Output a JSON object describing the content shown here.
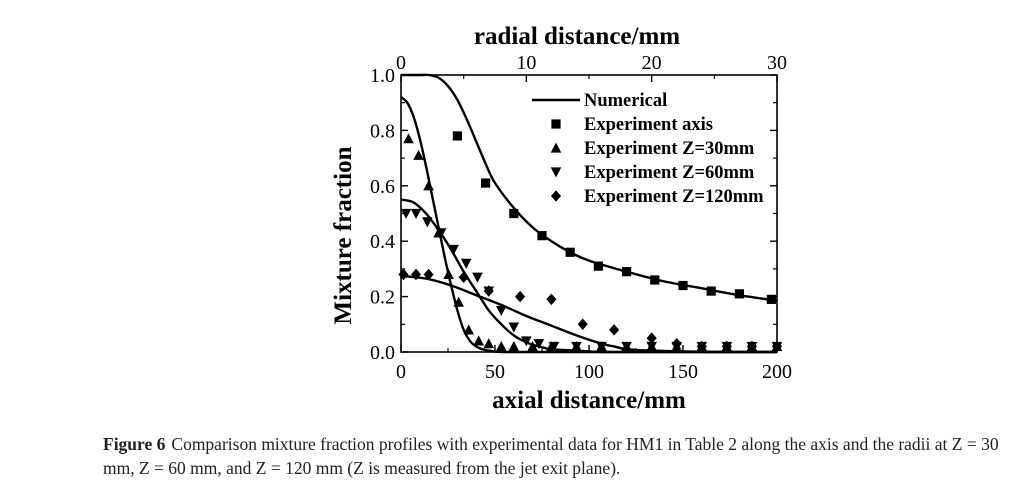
{
  "chart_data": {
    "type": "line",
    "title": "",
    "xlabel": "axial distance/mm",
    "x2label": "radial distance/mm",
    "ylabel": "Mixture fraction",
    "xlim": [
      0,
      200
    ],
    "x2lim": [
      0,
      30
    ],
    "ylim": [
      0.0,
      1.0
    ],
    "x_ticks": [
      "0",
      "50",
      "100",
      "150",
      "200"
    ],
    "x2_ticks": [
      "0",
      "10",
      "20",
      "30"
    ],
    "y_ticks": [
      "0.0",
      "0.2",
      "0.4",
      "0.6",
      "0.8",
      "1.0"
    ],
    "grid": false,
    "legend_position": "top-right",
    "series": [
      {
        "name": "Numerical (axis)",
        "legend": "Numerical",
        "kind": "line",
        "axis": "axial",
        "x": [
          0,
          10,
          15,
          20,
          25,
          30,
          35,
          40,
          45,
          50,
          60,
          70,
          80,
          90,
          100,
          120,
          140,
          160,
          180,
          200
        ],
        "y": [
          1.0,
          1.0,
          1.0,
          0.99,
          0.96,
          0.91,
          0.84,
          0.76,
          0.68,
          0.61,
          0.52,
          0.45,
          0.4,
          0.36,
          0.33,
          0.29,
          0.255,
          0.23,
          0.205,
          0.185
        ]
      },
      {
        "name": "Numerical (Z=30mm)",
        "kind": "line",
        "axis": "radial",
        "x": [
          0,
          0.5,
          1,
          1.5,
          2,
          2.5,
          3,
          3.5,
          4,
          4.5,
          5,
          5.5,
          6,
          6.5,
          7,
          8,
          10,
          15,
          20,
          30
        ],
        "y": [
          0.92,
          0.9,
          0.85,
          0.77,
          0.67,
          0.56,
          0.45,
          0.34,
          0.24,
          0.15,
          0.08,
          0.04,
          0.02,
          0.01,
          0.005,
          0.0,
          0.0,
          0.0,
          0.0,
          0.0
        ]
      },
      {
        "name": "Numerical (Z=60mm)",
        "kind": "line",
        "axis": "radial",
        "x": [
          0,
          1,
          2,
          3,
          4,
          5,
          6,
          7,
          8,
          9,
          10,
          11,
          12,
          14,
          16,
          20,
          30
        ],
        "y": [
          0.55,
          0.54,
          0.5,
          0.44,
          0.37,
          0.29,
          0.22,
          0.15,
          0.1,
          0.06,
          0.035,
          0.02,
          0.01,
          0.005,
          0.0,
          0.0,
          0.0
        ]
      },
      {
        "name": "Numerical (Z=120mm)",
        "kind": "line",
        "axis": "radial",
        "x": [
          0,
          2,
          4,
          6,
          8,
          10,
          12,
          14,
          16,
          17,
          18,
          20,
          25,
          30
        ],
        "y": [
          0.275,
          0.265,
          0.24,
          0.205,
          0.17,
          0.13,
          0.095,
          0.06,
          0.03,
          0.02,
          0.01,
          0.005,
          0.0,
          0.0
        ]
      },
      {
        "name": "Experiment axis",
        "legend": "Experiment axis",
        "kind": "marker",
        "marker": "square",
        "axis": "axial",
        "x": [
          30,
          45,
          60,
          75,
          90,
          105,
          120,
          135,
          150,
          165,
          180,
          197
        ],
        "y": [
          0.78,
          0.61,
          0.5,
          0.42,
          0.36,
          0.31,
          0.29,
          0.26,
          0.24,
          0.22,
          0.21,
          0.19
        ]
      },
      {
        "name": "Experiment Z=30mm",
        "legend": "Experiment Z=30mm",
        "kind": "marker",
        "marker": "triangle-up",
        "axis": "radial",
        "x": [
          0.6,
          1.4,
          2.2,
          3.0,
          3.8,
          4.6,
          5.4,
          6.2,
          7.0,
          8.0,
          9.0,
          10.5,
          12,
          14,
          16,
          18,
          20,
          22,
          24,
          26,
          28,
          30
        ],
        "y": [
          0.77,
          0.71,
          0.6,
          0.43,
          0.28,
          0.18,
          0.08,
          0.04,
          0.03,
          0.02,
          0.02,
          0.02,
          0.02,
          0.02,
          0.02,
          0.02,
          0.02,
          0.02,
          0.02,
          0.02,
          0.02,
          0.02
        ]
      },
      {
        "name": "Experiment Z=60mm",
        "legend": "Experiment Z=60mm",
        "kind": "marker",
        "marker": "triangle-down",
        "axis": "radial",
        "x": [
          0.4,
          1.2,
          2.1,
          3.2,
          4.2,
          5.2,
          6.1,
          7.0,
          8.0,
          9.0,
          10.0,
          11.0,
          12.2,
          14,
          16,
          18,
          20,
          22,
          24,
          26,
          28,
          30
        ],
        "y": [
          0.5,
          0.5,
          0.47,
          0.43,
          0.37,
          0.32,
          0.27,
          0.22,
          0.15,
          0.09,
          0.04,
          0.03,
          0.02,
          0.02,
          0.02,
          0.02,
          0.02,
          0.02,
          0.02,
          0.02,
          0.02,
          0.02
        ]
      },
      {
        "name": "Experiment Z=120mm",
        "legend": "Experiment Z=120mm",
        "kind": "marker",
        "marker": "diamond",
        "axis": "radial",
        "x": [
          0.2,
          1.2,
          2.2,
          5.0,
          7.0,
          9.5,
          12.0,
          14.5,
          17.0,
          20.0,
          22.0,
          24.0,
          26.0,
          28.0,
          30.0
        ],
        "y": [
          0.28,
          0.28,
          0.28,
          0.27,
          0.22,
          0.2,
          0.19,
          0.1,
          0.08,
          0.05,
          0.03,
          0.02,
          0.02,
          0.02,
          0.02
        ]
      }
    ]
  },
  "caption": {
    "label": "Figure 6",
    "text": "Comparison mixture fraction profiles with experimental data for HM1 in Table 2 along the axis and the radii at Z = 30 mm, Z = 60 mm, and Z = 120 mm (Z is measured from the jet exit plane)."
  }
}
